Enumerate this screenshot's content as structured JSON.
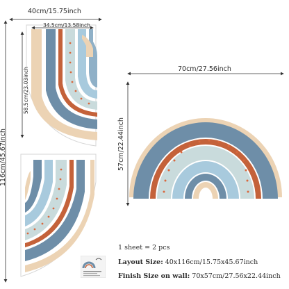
{
  "sheet_dims": {
    "width_label": "40cm/15.75inch",
    "height_label": "116cm/45.67inch",
    "inner_width_label": "34.5cm/13.58inch",
    "inner_height_label": "58.5cm/23.03inch"
  },
  "assembled_dims": {
    "width_label": "70cm/27.56inch",
    "height_label": "57cm/22.44inch"
  },
  "info": {
    "sheet_count": "1 sheet = 2 pcs",
    "layout_label": "Layout Size:",
    "layout_value": "40x116cm/15.75x45.67inch",
    "finish_label": "Finish Size on wall:",
    "finish_value": "70x57cm/27.56x22.44inch"
  },
  "colors": {
    "blue_dark": "#6e8ea8",
    "blue_mid": "#8fb0c7",
    "blue_light": "#a8cadd",
    "rust": "#c4623a",
    "sage": "#c9dbdc",
    "sand": "#ecd3b4",
    "dot": "#d9683d"
  }
}
